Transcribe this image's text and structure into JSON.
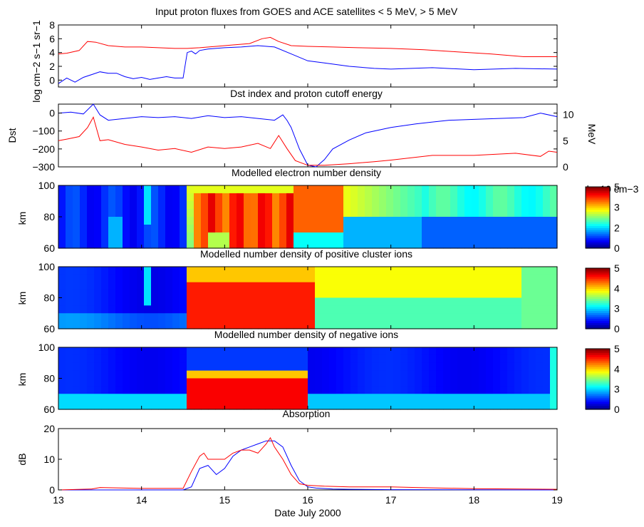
{
  "chart_data": [
    {
      "type": "line",
      "title": "Input proton fluxes from GOES and ACE satellites < 5 MeV, > 5 MeV",
      "ylabel": "log cm−2 s−1 sr−1",
      "ylim": [
        -1,
        8
      ],
      "yticks": [
        "0",
        "2",
        "4",
        "6",
        "8"
      ],
      "series": [
        {
          "color": "#ff0000",
          "x": [
            13.0,
            13.1,
            13.25,
            13.35,
            13.45,
            13.6,
            13.8,
            14.0,
            14.2,
            14.4,
            14.55,
            14.7,
            14.9,
            15.1,
            15.3,
            15.45,
            15.55,
            15.65,
            15.8,
            16.0,
            16.3,
            16.6,
            17.0,
            17.4,
            17.8,
            18.2,
            18.6,
            19.0
          ],
          "y": [
            3.8,
            3.9,
            4.3,
            5.6,
            5.5,
            5.0,
            4.8,
            4.8,
            4.7,
            4.6,
            4.6,
            4.7,
            4.9,
            5.1,
            5.3,
            6.0,
            6.2,
            5.6,
            5.0,
            4.9,
            4.8,
            4.7,
            4.6,
            4.4,
            4.1,
            3.8,
            3.4,
            3.4
          ]
        },
        {
          "color": "#0000ff",
          "x": [
            13.0,
            13.1,
            13.2,
            13.3,
            13.4,
            13.5,
            13.6,
            13.7,
            13.8,
            13.9,
            14.0,
            14.1,
            14.2,
            14.3,
            14.4,
            14.5,
            14.55,
            14.6,
            14.65,
            14.7,
            14.8,
            15.0,
            15.2,
            15.4,
            15.6,
            15.8,
            16.0,
            16.2,
            16.5,
            16.8,
            17.0,
            17.5,
            18.0,
            18.5,
            19.0
          ],
          "y": [
            -0.5,
            0.3,
            -0.3,
            0.4,
            0.8,
            1.2,
            1.0,
            1.0,
            0.5,
            0.2,
            0.4,
            0.1,
            0.3,
            0.5,
            0.3,
            0.3,
            4.0,
            4.2,
            3.8,
            4.3,
            4.5,
            4.7,
            4.8,
            5.0,
            4.8,
            3.8,
            2.8,
            2.5,
            2.0,
            1.7,
            1.6,
            1.8,
            1.5,
            1.7,
            1.6
          ]
        }
      ]
    },
    {
      "type": "line",
      "title": "Dst index and proton cutoff energy",
      "ylabel": "Dst",
      "y2label": "MeV",
      "ylim": [
        -300,
        50
      ],
      "y2lim": [
        0,
        12
      ],
      "yticks": [
        "0",
        "−100",
        "−200",
        "−300"
      ],
      "y2ticks": [
        "0",
        "5",
        "10"
      ],
      "series": [
        {
          "color": "#0000ff",
          "axis": "left",
          "x": [
            13.0,
            13.15,
            13.3,
            13.42,
            13.5,
            13.6,
            13.8,
            14.0,
            14.2,
            14.4,
            14.6,
            14.8,
            15.0,
            15.2,
            15.4,
            15.6,
            15.7,
            15.75,
            15.8,
            15.9,
            16.0,
            16.1,
            16.2,
            16.3,
            16.5,
            16.7,
            17.0,
            17.3,
            17.5,
            17.7,
            18.0,
            18.3,
            18.6,
            18.8,
            19.0
          ],
          "y": [
            0,
            5,
            -5,
            50,
            -10,
            -40,
            -30,
            -20,
            -25,
            -20,
            -30,
            -15,
            -25,
            -20,
            -30,
            -40,
            -10,
            -40,
            -80,
            -200,
            -290,
            -300,
            -260,
            -200,
            -150,
            -110,
            -80,
            -60,
            -50,
            -40,
            -35,
            -30,
            -25,
            0,
            -20
          ]
        },
        {
          "color": "#ff0000",
          "axis": "right",
          "x": [
            13.0,
            13.1,
            13.25,
            13.35,
            13.42,
            13.5,
            13.6,
            13.8,
            14.0,
            14.2,
            14.4,
            14.6,
            14.8,
            15.0,
            15.2,
            15.4,
            15.55,
            15.65,
            15.75,
            15.85,
            16.0,
            16.2,
            16.5,
            16.8,
            17.0,
            17.5,
            18.0,
            18.5,
            18.8,
            18.9,
            19.0
          ],
          "y": [
            5.0,
            5.3,
            5.8,
            7.5,
            9.5,
            5.0,
            5.2,
            4.3,
            3.8,
            3.2,
            3.5,
            2.8,
            3.8,
            3.5,
            3.8,
            4.5,
            3.5,
            6.0,
            3.5,
            1.2,
            0.3,
            0.3,
            0.6,
            1.0,
            1.3,
            2.2,
            2.2,
            2.6,
            2.0,
            3.0,
            2.8
          ]
        }
      ]
    },
    {
      "type": "heatmap",
      "title": "Modelled electron number density",
      "ylabel": "km",
      "yticks": [
        "60",
        "80",
        "100"
      ],
      "colorbar": {
        "label": "log10 cm−3",
        "ticks": [
          "0",
          "2",
          "3",
          "5"
        ]
      }
    },
    {
      "type": "heatmap",
      "title": "Modelled number density of positive cluster ions",
      "ylabel": "km",
      "yticks": [
        "60",
        "80",
        "100"
      ],
      "colorbar": {
        "ticks": [
          "0",
          "3",
          "4",
          "5"
        ]
      }
    },
    {
      "type": "heatmap",
      "title": "Modelled number density of negative ions",
      "ylabel": "km",
      "yticks": [
        "60",
        "80",
        "100"
      ],
      "colorbar": {
        "ticks": [
          "0",
          "3",
          "4",
          "5"
        ]
      }
    },
    {
      "type": "line",
      "title": "Absorption",
      "ylabel": "dB",
      "xlabel": "Date July 2000",
      "ylim": [
        0,
        20
      ],
      "yticks": [
        "0",
        "10",
        "20"
      ],
      "xticks": [
        "13",
        "14",
        "15",
        "16",
        "17",
        "18",
        "19"
      ],
      "series": [
        {
          "color": "#0000ff",
          "x": [
            13.0,
            14.5,
            14.6,
            14.7,
            14.8,
            14.9,
            15.0,
            15.1,
            15.2,
            15.3,
            15.4,
            15.5,
            15.6,
            15.7,
            15.8,
            15.9,
            16.0,
            16.1,
            16.3,
            16.5,
            17.0,
            19.0
          ],
          "y": [
            0,
            0,
            1,
            7,
            8,
            5,
            7,
            11,
            13,
            14,
            15,
            16,
            16,
            14,
            8,
            3,
            1,
            0.6,
            0.3,
            0.2,
            0.1,
            0
          ]
        },
        {
          "color": "#ff0000",
          "x": [
            13.0,
            13.4,
            13.5,
            14.0,
            14.5,
            14.6,
            14.7,
            14.75,
            14.8,
            14.9,
            15.0,
            15.1,
            15.2,
            15.3,
            15.4,
            15.5,
            15.55,
            15.6,
            15.7,
            15.8,
            15.9,
            16.0,
            16.2,
            16.5,
            17.0,
            17.3,
            18.0,
            19.0
          ],
          "y": [
            0,
            0.3,
            0.8,
            0.5,
            0.5,
            6,
            11,
            12,
            10,
            10,
            10,
            12,
            13,
            13,
            12,
            15,
            17,
            14,
            10,
            5,
            2,
            1.5,
            1.2,
            1.0,
            1.0,
            0.8,
            0.4,
            0.2
          ]
        }
      ]
    }
  ]
}
